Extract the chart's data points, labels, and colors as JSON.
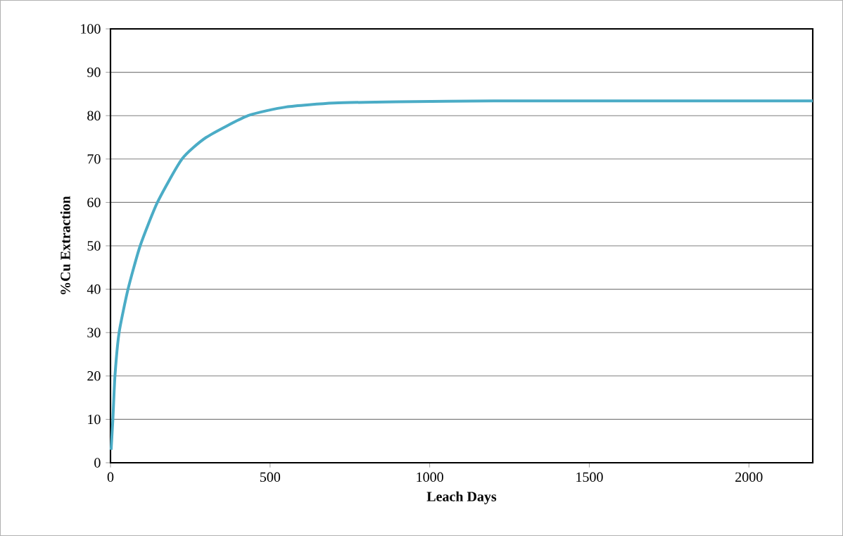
{
  "chart_data": {
    "type": "line",
    "xlabel": "Leach Days",
    "ylabel": "%Cu Extraction",
    "x": [
      2,
      7.5,
      14,
      27,
      55,
      93,
      147,
      224,
      300,
      431,
      550,
      700,
      900,
      1200,
      1600,
      2200
    ],
    "values": [
      3,
      10,
      20,
      30,
      40,
      50,
      60,
      70,
      75,
      80,
      82,
      82.9,
      83.2,
      83.4,
      83.4,
      83.4
    ],
    "color": "#4bacc6",
    "xlim": [
      0,
      2200
    ],
    "ylim": [
      0,
      100
    ],
    "xticks": [
      0,
      500,
      1000,
      1500,
      2000
    ],
    "yticks": [
      0,
      10,
      20,
      30,
      40,
      50,
      60,
      70,
      80,
      90,
      100
    ],
    "grid": "y",
    "marker": "none",
    "line_style": "solid"
  }
}
